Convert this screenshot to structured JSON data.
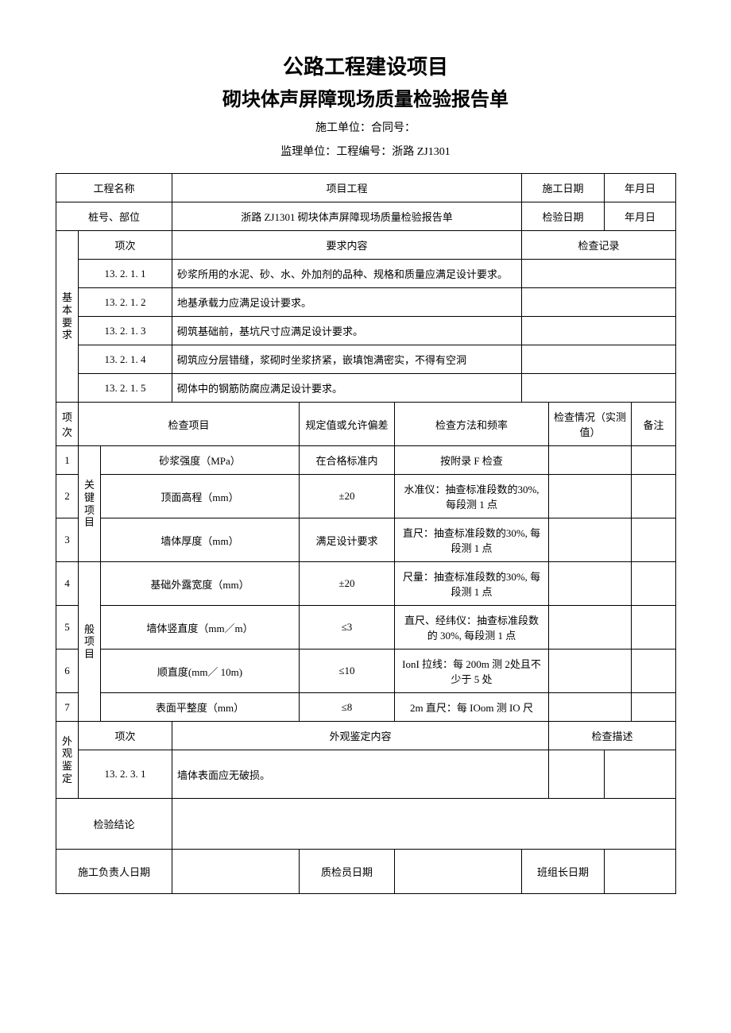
{
  "heading": {
    "title1": "公路工程建设项目",
    "title2": "砌块体声屏障现场质量检验报告单",
    "meta1": "施工单位：合同号：",
    "meta2": "监理单位：工程编号：浙路 ZJ1301"
  },
  "labels": {
    "proj_name": "工程名称",
    "proj_eng": "项目工程",
    "construct_date": "施工日期",
    "date_val": "年月日",
    "pile_pos": "桩号、部位",
    "doc_title": "浙路 ZJ1301 砌块体声屏障现场质量检验报告单",
    "inspect_date": "检验日期",
    "basic_req": "基本要求",
    "item_no": "项次",
    "req_content": "要求内容",
    "check_record": "检查记录",
    "check_item": "检查项目",
    "spec_dev": "规定值或允许偏差",
    "method_freq": "检查方法和频率",
    "check_status": "检查情况（实测值）",
    "remark": "备注",
    "key_item": "关键项目",
    "gen_item": "般项目",
    "appearance": "外观鉴定",
    "app_content": "外观鉴定内容",
    "check_desc": "检查描述",
    "conclusion": "检验结论",
    "resp_date": "施工负责人日期",
    "qc_date": "质检员日期",
    "team_date": "班组长日期"
  },
  "basic": [
    {
      "no": "13. 2. 1. 1",
      "text": "砂浆所用的水泥、砂、水、外加剂的品种、规格和质量应满足设计要求。"
    },
    {
      "no": "13. 2. 1. 2",
      "text": "地基承载力应满足设计要求。"
    },
    {
      "no": "13. 2. 1. 3",
      "text": "砌筑基础前，基坑尺寸应满足设计要求。"
    },
    {
      "no": "13. 2. 1. 4",
      "text": "砌筑应分层错缝，浆砌时坐浆挤紧，嵌填饱满密实，不得有空洞"
    },
    {
      "no": "13. 2. 1. 5",
      "text": "砌体中的钢筋防腐应满足设计要求。"
    }
  ],
  "checks": [
    {
      "n": "1",
      "item": "砂浆强度（MPa）",
      "spec": "在合格标准内",
      "method": "按附录 F 检查"
    },
    {
      "n": "2",
      "item": "顶面高程（mm）",
      "spec": "±20",
      "method": "水准仪：抽查标准段数的30%, 每段测 1 点"
    },
    {
      "n": "3",
      "item": "墙体厚度（mm）",
      "spec": "满足设计要求",
      "method": "直尺：抽查标准段数的30%, 每段测 1 点"
    },
    {
      "n": "4",
      "item": "基础外露宽度（mm）",
      "spec": "±20",
      "method": "尺量：抽查标准段数的30%, 每段测 1 点"
    },
    {
      "n": "5",
      "item": "墙体竖直度（mm／m）",
      "spec": "≤3",
      "method": "直尺、经纬仪：抽查标准段数的 30%, 每段测 1 点"
    },
    {
      "n": "6",
      "item": "顺直度(mm／ 10m)",
      "spec": "≤10",
      "method": "IonI 拉线：每 200m 测 2处且不少于 5 处"
    },
    {
      "n": "7",
      "item": "表面平整度（mm）",
      "spec": "≤8",
      "method": "2m 直尺：每 IOom 测 IO 尺"
    }
  ],
  "appearance_row": {
    "no": "13. 2. 3. 1",
    "text": "墙体表面应无破损。"
  }
}
